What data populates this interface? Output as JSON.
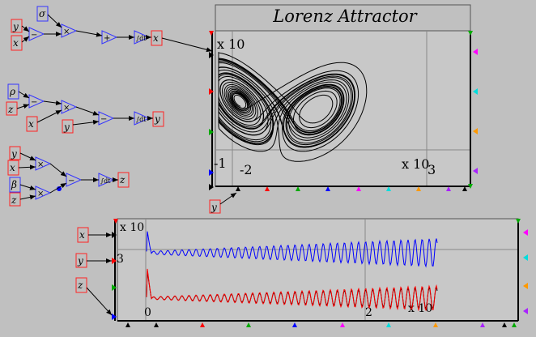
{
  "phase_plot": {
    "title": "Lorenz Attractor",
    "y_scale": "x 10",
    "y_tick": "-1",
    "x_tick_left": "-2",
    "x_scale": "x 10",
    "x_tick_right": "3"
  },
  "time_plot": {
    "y_scale": "x 10",
    "y_tick": "3",
    "x_tick_left": "0",
    "x_tick_mid": "2",
    "x_scale": "x 10"
  },
  "blocks": {
    "sigma": "σ",
    "rho": "ρ",
    "beta": "β",
    "x": "x",
    "y": "y",
    "z": "z",
    "sum": "+",
    "minus": "−",
    "times": "×",
    "integral": "∫dt"
  },
  "colors": {
    "block_blue": "#3333ff",
    "label_red": "#ff2222",
    "trace_x": "#0000ff",
    "trace_y": "#ff0000",
    "trace_z": "#000000"
  }
}
